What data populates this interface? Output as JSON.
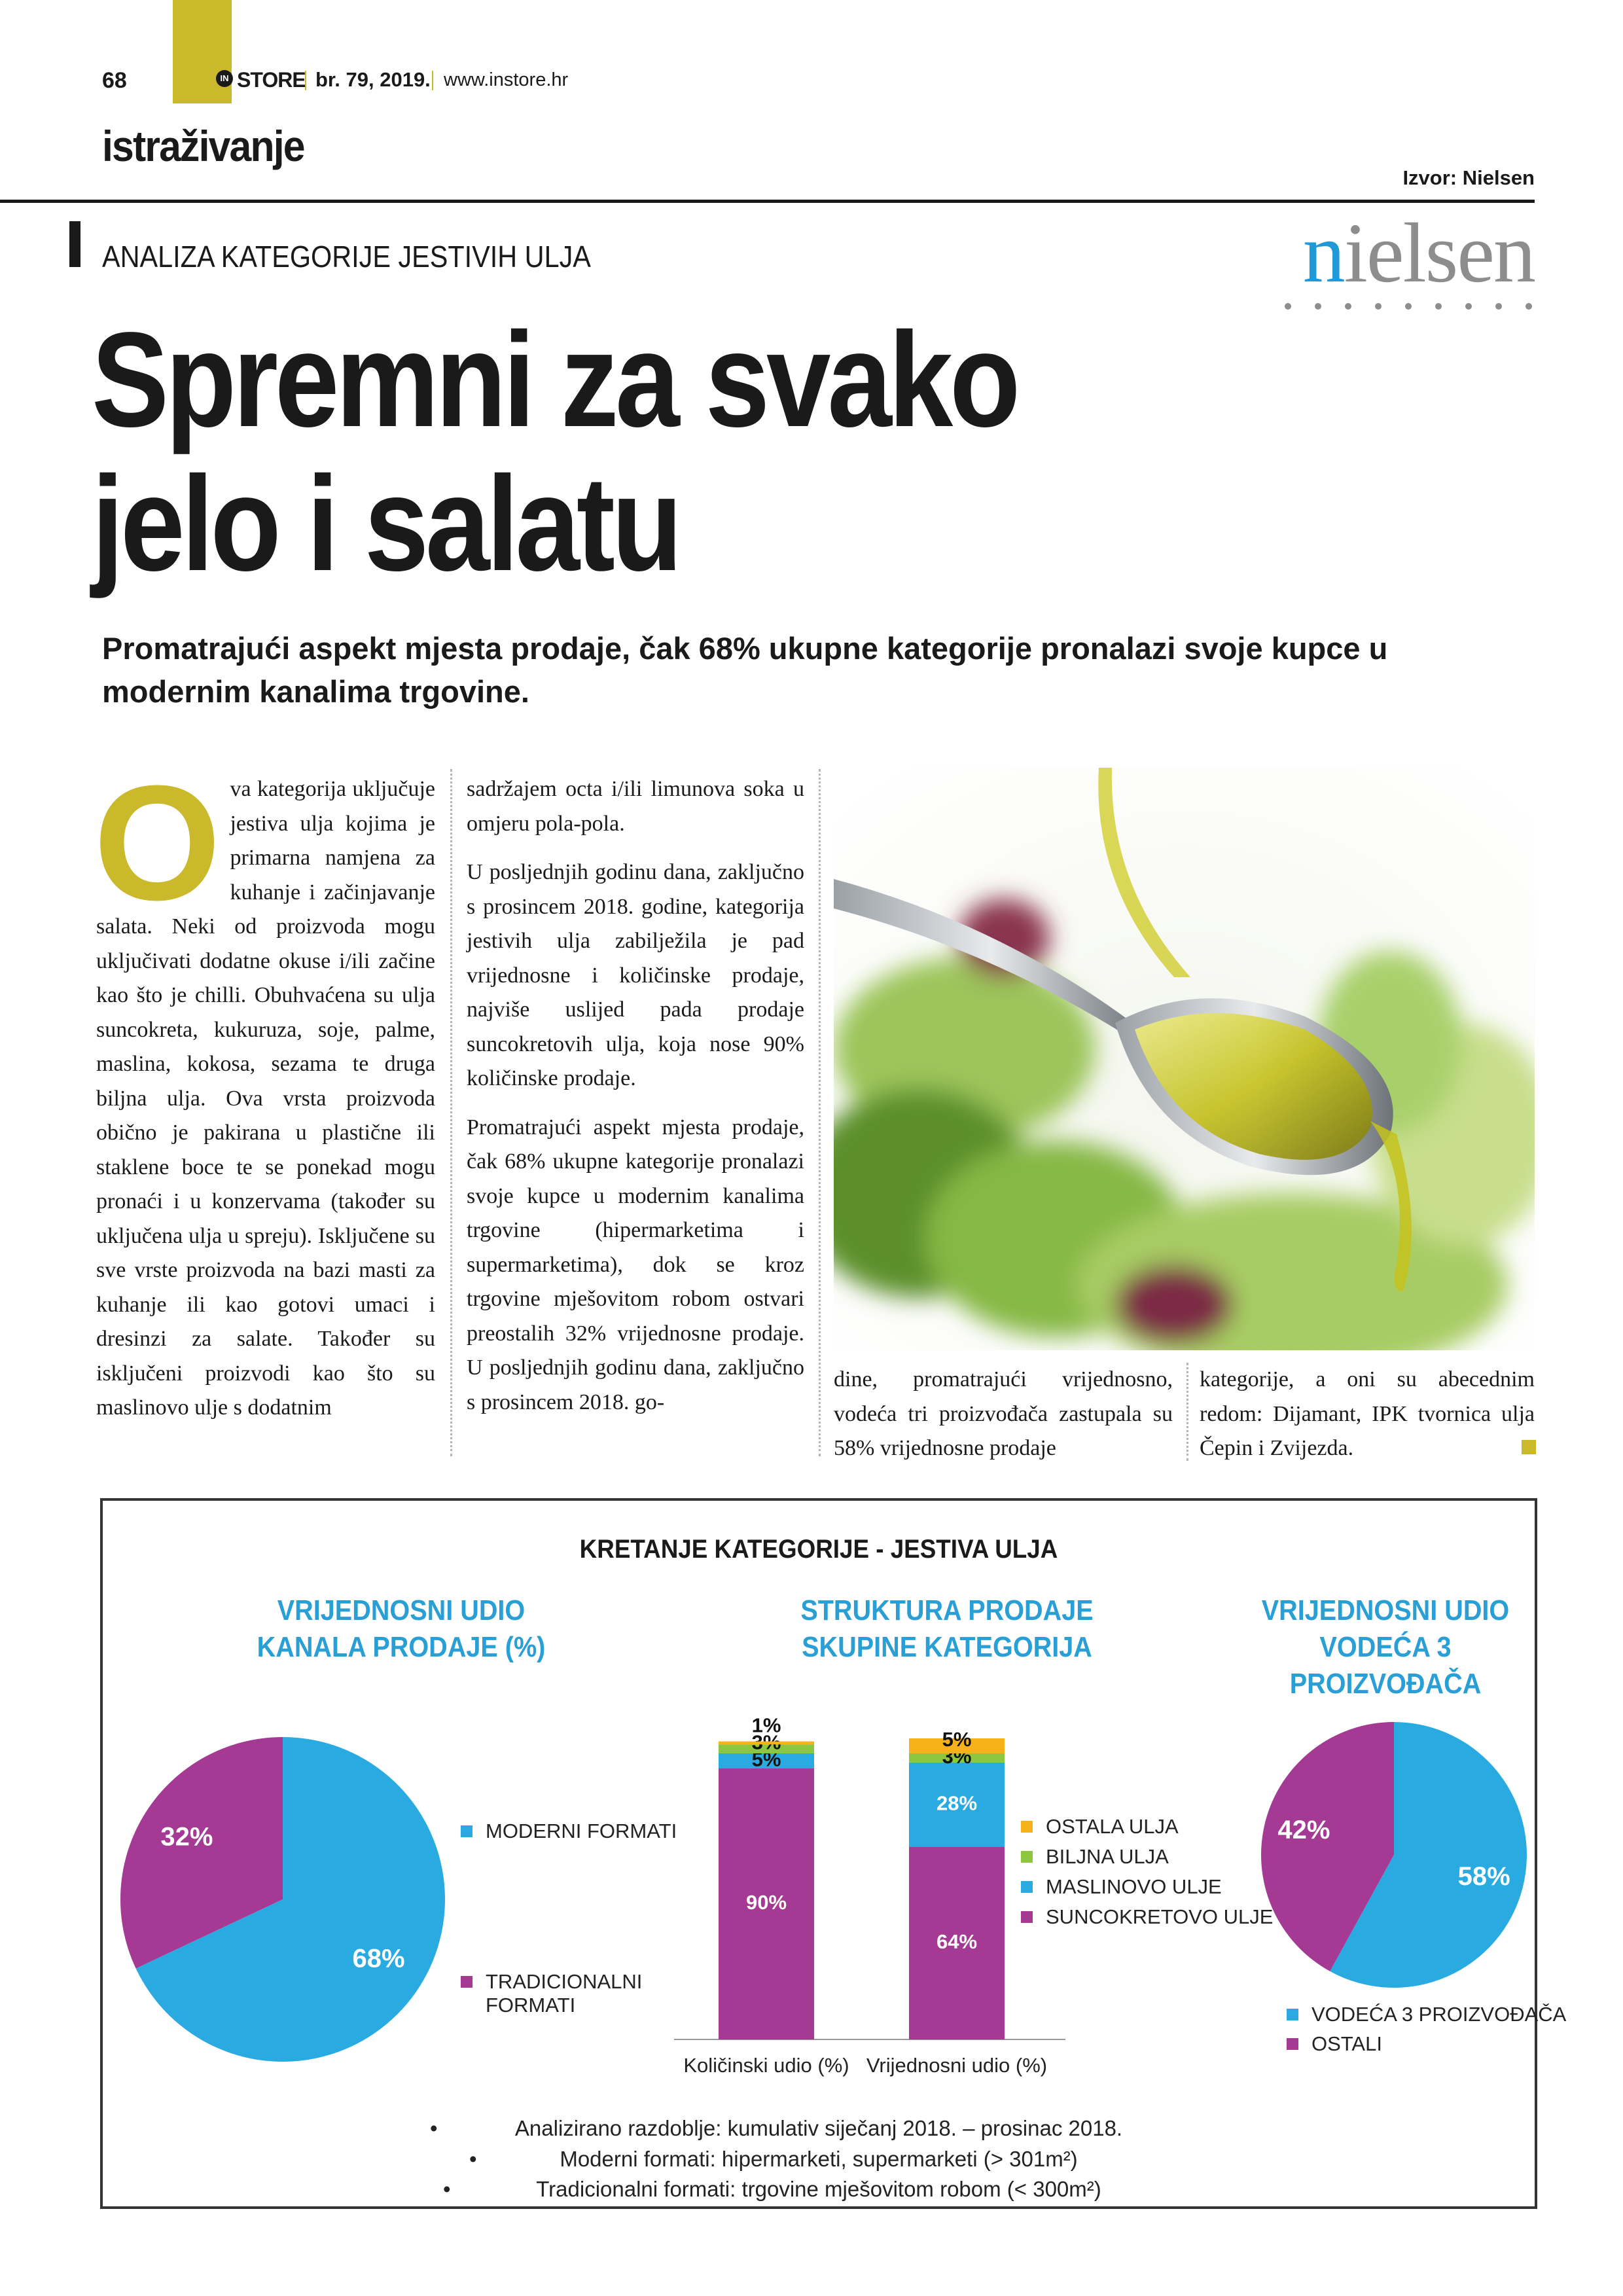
{
  "header": {
    "page_number": "68",
    "logo_mark": "IN",
    "brand": "STORE",
    "issue": "br. 79, 2019.",
    "website": "www.instore.hr"
  },
  "section": "istraživanje",
  "source": "Izvor: Nielsen",
  "logo": "nielsen",
  "kicker": "ANALIZA KATEGORIJE JESTIVIH ULJA",
  "title": "Spremni za svako jelo i salatu",
  "lead": "Promatrajući aspekt mjesta prodaje, čak 68% ukupne kategorije pronalazi svoje kupce u modernim kanalima trgovine.",
  "article": {
    "drop_cap": "O",
    "columns": [
      {
        "paragraphs": [
          "va kategorija uključuje jestiva ulja kojima je primarna namjena za kuhanje i začinjavanje salata. Neki od proizvoda mogu uključivati dodatne okuse i/ili začine kao što je chilli. Obuhvaćena su ulja suncokreta, kukuruza, soje, palme, maslina, kokosa, sezama te druga biljna ulja. Ova vrsta proizvoda obično je pakirana u plastične ili staklene boce te se ponekad mogu pronaći i u konzervama (također su uključena ulja u spreju). Isključene su sve vrste proizvoda na bazi masti za kuhanje ili kao gotovi umaci i dresinzi za salate. Također su isključeni proizvodi kao što su maslinovo ulje s dodatnim"
        ]
      },
      {
        "paragraphs": [
          "sadržajem octa i/ili limunova soka u omjeru pola-pola.",
          "U posljednjih godinu dana, zaključno s prosincem 2018. godine, kategorija jestivih ulja zabilježila je pad vrijednosne i količinske prodaje, najviše uslijed pada prodaje suncokretovih ulja, koja nose 90% količinske prodaje.",
          "Promatrajući aspekt mjesta prodaje, čak 68% ukupne kategorije pronalazi svoje kupce u modernim kanalima trgovine (hipermarketima i supermarketima), dok se kroz trgovine mješovitom robom ostvari preostalih 32% vrijednosne prodaje. U posljednjih godinu dana, zaključno s prosincem 2018. go-"
        ]
      },
      {
        "paragraphs": [
          "dine, promatrajući vrijednosno, vodeća tri proizvođača zastupala su 58% vrijednosne prodaje"
        ]
      },
      {
        "paragraphs": [
          "kategorije, a oni su abecednim redom: Dijamant, IPK tvornica ulja Čepin i Zvijezda."
        ]
      }
    ]
  },
  "infographic": {
    "title": "KRETANJE KATEGORIJE - JESTIVA ULJA",
    "notes": [
      "Analizirano razdoblje: kumulativ siječanj 2018. – prosinac 2018.",
      "Moderni formati: hipermarketi, supermarketi (> 301m²)",
      "Tradicionalni formati: trgovine mješovitom robom (< 300m²)"
    ]
  },
  "chart_data": [
    {
      "type": "pie",
      "title": "VRIJEDNOSNI UDIO KANALA PRODAJE (%)",
      "categories": [
        "MODERNI FORMATI",
        "TRADICIONALNI FORMATI"
      ],
      "values": [
        68,
        32
      ],
      "value_labels": [
        "68%",
        "32%"
      ],
      "colors": [
        "#29abe2",
        "#a53a95"
      ]
    },
    {
      "type": "bar",
      "stacked": true,
      "title": "STRUKTURA PRODAJE SKUPINE KATEGORIJA",
      "categories": [
        "Količinski udio (%)",
        "Vrijednosni udio (%)"
      ],
      "series": [
        {
          "name": "SUNCOKRETOVO ULJE",
          "color": "#a53a95",
          "values": [
            90,
            64
          ],
          "value_labels": [
            "90%",
            "64%"
          ]
        },
        {
          "name": "MASLINOVO ULJE",
          "color": "#29abe2",
          "values": [
            5,
            28
          ],
          "value_labels": [
            "5%",
            "28%"
          ]
        },
        {
          "name": "BILJNA ULJA",
          "color": "#8dc63f",
          "values": [
            3,
            3
          ],
          "value_labels": [
            "3%",
            "3%"
          ]
        },
        {
          "name": "OSTALA ULJA",
          "color": "#f7b21b",
          "values": [
            1,
            5
          ],
          "value_labels": [
            "1%",
            "5%"
          ]
        }
      ]
    },
    {
      "type": "pie",
      "title": "VRIJEDNOSNI UDIO VODEĆA 3 PROIZVOĐAČA",
      "categories": [
        "VODEĆA 3 PROIZVOĐAČA",
        "OSTALI"
      ],
      "values": [
        58,
        42
      ],
      "value_labels": [
        "58%",
        "42%"
      ],
      "colors": [
        "#29abe2",
        "#a53a95"
      ]
    }
  ]
}
